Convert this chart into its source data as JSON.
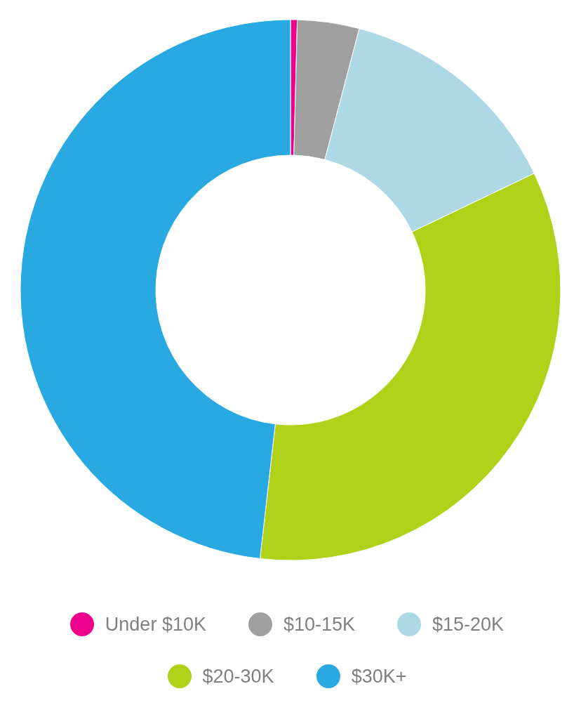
{
  "chart_data": {
    "type": "donut",
    "categories": [
      "Under $10K",
      "$10-15K",
      "$15-20K",
      "$20-30K",
      "$30K+"
    ],
    "values": [
      0.4,
      3.7,
      13.8,
      33.9,
      48.2
    ],
    "colors": [
      "#ec008c",
      "#a0a0a0",
      "#add8e6",
      "#afd118",
      "#29a9e1"
    ],
    "legend": "bottom"
  }
}
